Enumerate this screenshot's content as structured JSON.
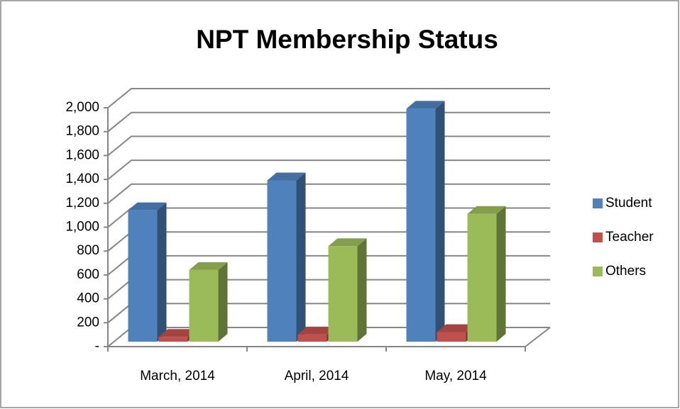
{
  "chart_data": {
    "type": "bar3d",
    "title": "NPT Membership Status",
    "categories": [
      "March, 2014",
      "April, 2014",
      "May, 2014"
    ],
    "series": [
      {
        "name": "Student",
        "color": "#4f81bd",
        "values": [
          1100,
          1350,
          1950
        ]
      },
      {
        "name": "Teacher",
        "color": "#c0504d",
        "values": [
          40,
          60,
          80
        ]
      },
      {
        "name": "Others",
        "color": "#9bbb59",
        "values": [
          600,
          800,
          1070
        ]
      }
    ],
    "ylim": [
      0,
      2000
    ],
    "yticks": [
      {
        "value": 0,
        "label": "-"
      },
      200,
      400,
      600,
      800,
      {
        "value": 1000,
        "label": "1,000"
      },
      {
        "value": 1200,
        "label": "1,200"
      },
      {
        "value": 1400,
        "label": "1,400"
      },
      {
        "value": 1600,
        "label": "1,600"
      },
      {
        "value": 1800,
        "label": "1,800"
      },
      {
        "value": 2000,
        "label": "2,000"
      }
    ],
    "grid": true,
    "legend": "right"
  }
}
